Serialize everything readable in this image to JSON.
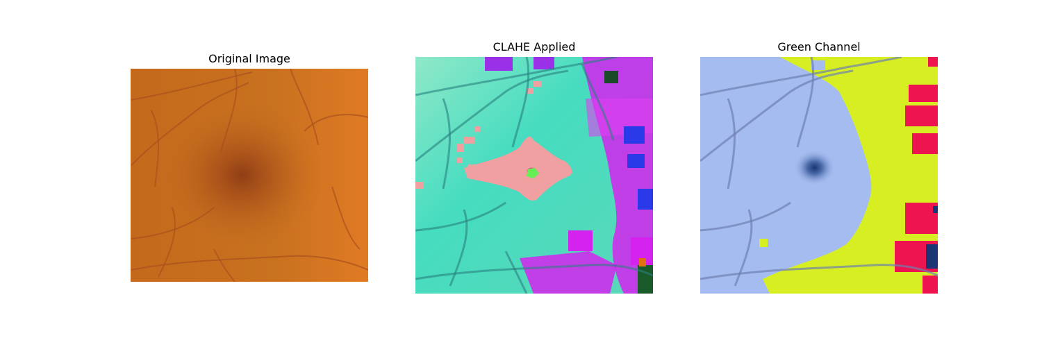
{
  "figure": {
    "panels": [
      {
        "title": "Original Image"
      },
      {
        "title": "CLAHE Applied"
      },
      {
        "title": "Green Channel"
      }
    ]
  },
  "colors": {
    "original_base": "#c5701f",
    "original_fovea": "#8a3815",
    "original_vessel": "#a8501e",
    "clahe_base": "#46e0c0",
    "clahe_fovea_pink": "#f0a0a0",
    "clahe_fovea_dark": "#5a0a30",
    "clahe_fovea_green": "#66ee55",
    "clahe_magenta": "#d020f0",
    "clahe_purple": "#9a30e8",
    "clahe_blue": "#2a3ae8",
    "clahe_vessel": "#2a8080",
    "green_base": "#a5bcf0",
    "green_fovea": "#1a3575",
    "green_yellow": "#d6ee22",
    "green_red": "#ee1450",
    "green_vessel": "#6d80b0"
  }
}
